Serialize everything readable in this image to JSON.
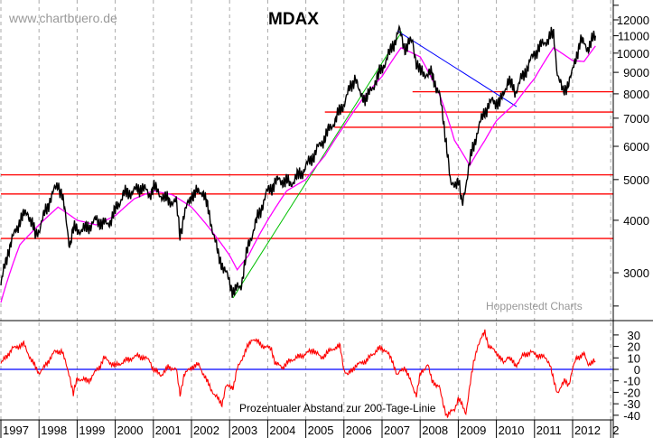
{
  "chart_data": [
    {
      "type": "line",
      "title": "MDAX",
      "watermark": "www.chartbuero.de",
      "source": "Hoppenstedt Charts",
      "y_scale": "log",
      "ylim": [
        2300,
        13000
      ],
      "y_ticks": [
        12000,
        11000,
        10000,
        9000,
        8000,
        7000,
        6000,
        5000,
        4000,
        3000
      ],
      "grid": "vertical dashed per year",
      "series": [
        {
          "role": "price",
          "color": "#000000",
          "points": [
            [
              1997.0,
              2800
            ],
            [
              1997.2,
              3400
            ],
            [
              1997.5,
              4000
            ],
            [
              1997.7,
              4200
            ],
            [
              1997.9,
              3700
            ],
            [
              1998.0,
              3800
            ],
            [
              1998.3,
              4500
            ],
            [
              1998.5,
              4900
            ],
            [
              1998.6,
              4600
            ],
            [
              1998.8,
              3500
            ],
            [
              1998.9,
              3800
            ],
            [
              1999.2,
              3800
            ],
            [
              1999.5,
              4000
            ],
            [
              1999.8,
              3900
            ],
            [
              2000.0,
              4200
            ],
            [
              2000.2,
              4600
            ],
            [
              2000.5,
              4700
            ],
            [
              2000.7,
              4800
            ],
            [
              2000.9,
              4600
            ],
            [
              2001.0,
              4800
            ],
            [
              2001.3,
              4500
            ],
            [
              2001.6,
              4400
            ],
            [
              2001.7,
              3700
            ],
            [
              2001.8,
              4100
            ],
            [
              2002.0,
              4600
            ],
            [
              2002.3,
              4700
            ],
            [
              2002.5,
              4000
            ],
            [
              2002.7,
              3300
            ],
            [
              2002.9,
              3000
            ],
            [
              2003.1,
              2700
            ],
            [
              2003.3,
              2800
            ],
            [
              2003.5,
              3500
            ],
            [
              2003.8,
              4200
            ],
            [
              2004.0,
              4700
            ],
            [
              2004.3,
              5000
            ],
            [
              2004.6,
              4900
            ],
            [
              2004.9,
              5200
            ],
            [
              2005.2,
              5700
            ],
            [
              2005.5,
              6300
            ],
            [
              2005.8,
              7000
            ],
            [
              2006.0,
              7600
            ],
            [
              2006.3,
              8800
            ],
            [
              2006.4,
              8000
            ],
            [
              2006.6,
              7800
            ],
            [
              2006.9,
              8800
            ],
            [
              2007.2,
              10000
            ],
            [
              2007.45,
              11300
            ],
            [
              2007.6,
              10300
            ],
            [
              2007.8,
              10700
            ],
            [
              2007.9,
              9500
            ],
            [
              2008.0,
              9000
            ],
            [
              2008.3,
              8900
            ],
            [
              2008.5,
              8000
            ],
            [
              2008.7,
              6000
            ],
            [
              2008.8,
              4800
            ],
            [
              2009.0,
              5000
            ],
            [
              2009.1,
              4300
            ],
            [
              2009.3,
              5500
            ],
            [
              2009.5,
              6500
            ],
            [
              2009.7,
              7300
            ],
            [
              2009.9,
              7700
            ],
            [
              2010.1,
              7600
            ],
            [
              2010.3,
              8600
            ],
            [
              2010.5,
              8100
            ],
            [
              2010.8,
              9200
            ],
            [
              2011.0,
              10000
            ],
            [
              2011.3,
              10700
            ],
            [
              2011.5,
              11100
            ],
            [
              2011.6,
              9000
            ],
            [
              2011.75,
              8000
            ],
            [
              2011.9,
              8600
            ],
            [
              2012.0,
              9000
            ],
            [
              2012.2,
              10700
            ],
            [
              2012.4,
              10300
            ],
            [
              2012.6,
              11000
            ]
          ]
        },
        {
          "role": "200-day moving average",
          "color": "#ff00ff",
          "points": [
            [
              1997.0,
              2550
            ],
            [
              1997.5,
              3500
            ],
            [
              1998.0,
              3900
            ],
            [
              1998.5,
              4300
            ],
            [
              1999.0,
              4000
            ],
            [
              1999.5,
              3900
            ],
            [
              2000.0,
              4100
            ],
            [
              2000.5,
              4500
            ],
            [
              2001.0,
              4700
            ],
            [
              2001.5,
              4600
            ],
            [
              2002.0,
              4300
            ],
            [
              2002.5,
              3800
            ],
            [
              2003.0,
              3300
            ],
            [
              2003.2,
              3050
            ],
            [
              2003.5,
              3300
            ],
            [
              2004.0,
              4000
            ],
            [
              2004.5,
              4700
            ],
            [
              2005.0,
              5000
            ],
            [
              2005.5,
              5700
            ],
            [
              2006.0,
              6700
            ],
            [
              2006.5,
              7800
            ],
            [
              2007.0,
              8800
            ],
            [
              2007.5,
              10300
            ],
            [
              2008.0,
              9800
            ],
            [
              2008.5,
              8000
            ],
            [
              2008.9,
              6200
            ],
            [
              2009.3,
              5400
            ],
            [
              2009.7,
              6200
            ],
            [
              2010.0,
              6900
            ],
            [
              2010.5,
              7600
            ],
            [
              2011.0,
              8700
            ],
            [
              2011.5,
              10300
            ],
            [
              2012.0,
              9600
            ],
            [
              2012.3,
              9550
            ],
            [
              2012.6,
              10400
            ]
          ]
        }
      ],
      "horizontal_lines": [
        {
          "value": 8090,
          "from": 2007.8,
          "color": "#ff0000"
        },
        {
          "value": 7240,
          "from": 2005.5,
          "color": "#ff0000"
        },
        {
          "value": 6660,
          "from": 2005.75,
          "color": "#ff0000"
        },
        {
          "value": 5130,
          "from": 1997.0,
          "color": "#ff0000"
        },
        {
          "value": 4620,
          "from": 1997.0,
          "color": "#ff0000"
        },
        {
          "value": 3620,
          "from": 1997.0,
          "color": "#ff0000"
        }
      ],
      "trendlines": [
        {
          "color": "#00c000",
          "from": [
            2003.09,
            2613
          ],
          "to": [
            2007.52,
            11250
          ]
        },
        {
          "color": "#0000ff",
          "from": [
            2007.4,
            11300
          ],
          "to": [
            2010.53,
            7460
          ]
        }
      ]
    },
    {
      "type": "line",
      "title": "Prozentualer Abstand zur 200-Tage-Linie",
      "ylim": [
        -44,
        36
      ],
      "y_ticks": [
        30,
        20,
        10,
        0,
        -10,
        -20,
        -30,
        -40
      ],
      "reference_line": {
        "value": 0,
        "color": "#0000ff"
      },
      "series": [
        {
          "color": "#ff0000",
          "points": [
            [
              1997.0,
              5
            ],
            [
              1997.3,
              18
            ],
            [
              1997.6,
              22
            ],
            [
              1997.8,
              8
            ],
            [
              1998.0,
              -3
            ],
            [
              1998.1,
              0
            ],
            [
              1998.4,
              15
            ],
            [
              1998.6,
              16
            ],
            [
              1998.8,
              -5
            ],
            [
              1998.9,
              -22
            ],
            [
              1999.0,
              -8
            ],
            [
              1999.3,
              -10
            ],
            [
              1999.6,
              3
            ],
            [
              1999.7,
              10
            ],
            [
              2000.0,
              3
            ],
            [
              2000.3,
              8
            ],
            [
              2000.6,
              12
            ],
            [
              2000.9,
              8
            ],
            [
              2001.0,
              0
            ],
            [
              2001.2,
              -5
            ],
            [
              2001.4,
              2
            ],
            [
              2001.6,
              0
            ],
            [
              2001.7,
              -22
            ],
            [
              2001.8,
              -5
            ],
            [
              2002.0,
              2
            ],
            [
              2002.2,
              4
            ],
            [
              2002.4,
              -10
            ],
            [
              2002.6,
              -22
            ],
            [
              2002.8,
              -30
            ],
            [
              2002.9,
              -15
            ],
            [
              2003.1,
              -15
            ],
            [
              2003.2,
              0
            ],
            [
              2003.4,
              15
            ],
            [
              2003.6,
              27
            ],
            [
              2003.9,
              20
            ],
            [
              2004.1,
              18
            ],
            [
              2004.2,
              5
            ],
            [
              2004.4,
              2
            ],
            [
              2004.6,
              8
            ],
            [
              2004.9,
              12
            ],
            [
              2005.2,
              17
            ],
            [
              2005.4,
              10
            ],
            [
              2005.7,
              18
            ],
            [
              2005.9,
              20
            ],
            [
              2006.0,
              0
            ],
            [
              2006.1,
              -5
            ],
            [
              2006.3,
              3
            ],
            [
              2006.6,
              8
            ],
            [
              2006.9,
              18
            ],
            [
              2007.1,
              17
            ],
            [
              2007.3,
              5
            ],
            [
              2007.4,
              -5
            ],
            [
              2007.6,
              2
            ],
            [
              2007.8,
              -15
            ],
            [
              2007.9,
              -22
            ],
            [
              2008.0,
              -5
            ],
            [
              2008.2,
              5
            ],
            [
              2008.3,
              -10
            ],
            [
              2008.5,
              -15
            ],
            [
              2008.6,
              -30
            ],
            [
              2008.7,
              -40
            ],
            [
              2008.9,
              -35
            ],
            [
              2009.0,
              -25
            ],
            [
              2009.2,
              -38
            ],
            [
              2009.3,
              -15
            ],
            [
              2009.4,
              5
            ],
            [
              2009.5,
              20
            ],
            [
              2009.7,
              33
            ],
            [
              2009.8,
              20
            ],
            [
              2010.0,
              15
            ],
            [
              2010.2,
              5
            ],
            [
              2010.3,
              12
            ],
            [
              2010.5,
              3
            ],
            [
              2010.7,
              12
            ],
            [
              2010.9,
              15
            ],
            [
              2011.1,
              12
            ],
            [
              2011.3,
              10
            ],
            [
              2011.4,
              5
            ],
            [
              2011.5,
              -10
            ],
            [
              2011.6,
              -20
            ],
            [
              2011.8,
              -10
            ],
            [
              2011.9,
              -13
            ],
            [
              2012.0,
              0
            ],
            [
              2012.1,
              10
            ],
            [
              2012.3,
              13
            ],
            [
              2012.4,
              5
            ],
            [
              2012.6,
              7
            ]
          ]
        }
      ]
    }
  ],
  "x_axis": {
    "tick_labels": [
      "1997",
      "1998",
      "1999",
      "2000",
      "2001",
      "2002",
      "2003",
      "2004",
      "2005",
      "2006",
      "2007",
      "2008",
      "2009",
      "2010",
      "2011",
      "2012",
      "2"
    ]
  },
  "labels": {
    "watermark": "www.chartbuero.de",
    "title": "MDAX",
    "source": "Hoppenstedt Charts",
    "oscillator_title": "Prozentualer Abstand zur 200-Tage-Linie"
  }
}
